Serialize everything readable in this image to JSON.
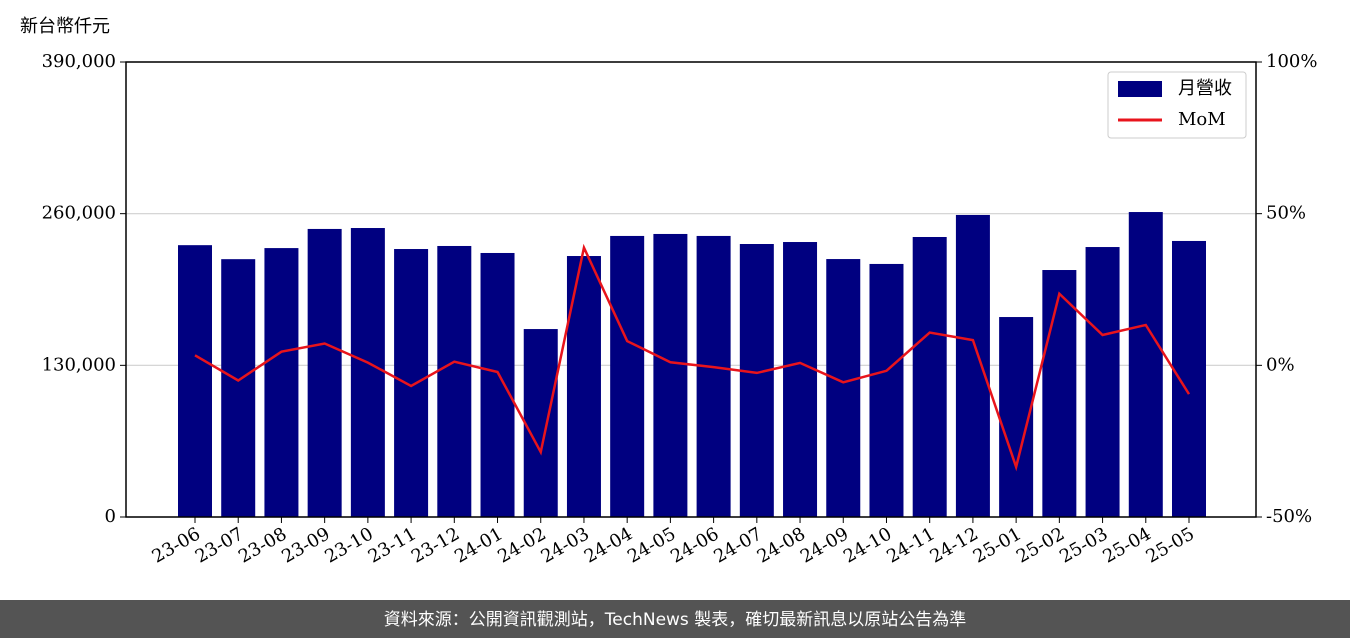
{
  "chart_data": {
    "type": "bar-line",
    "y_unit_label": "新台幣仟元",
    "source": "資料來源：公開資訊觀測站，TechNews 製表，確切最新訊息以原站公告為準",
    "categories": [
      "23-06",
      "23-07",
      "23-08",
      "23-09",
      "23-10",
      "23-11",
      "23-12",
      "24-01",
      "24-02",
      "24-03",
      "24-04",
      "24-05",
      "24-06",
      "24-07",
      "24-08",
      "24-09",
      "24-10",
      "24-11",
      "24-12",
      "25-01",
      "25-02",
      "25-03",
      "25-04",
      "25-05"
    ],
    "series": [
      {
        "name": "月營收",
        "type": "bar",
        "color": "#000080",
        "values": [
          233000,
          221000,
          230500,
          246900,
          247700,
          229700,
          232300,
          226300,
          161100,
          223700,
          240900,
          242600,
          240900,
          234000,
          235700,
          221100,
          216900,
          240000,
          258900,
          171400,
          211700,
          231400,
          261400,
          236600
        ]
      },
      {
        "name": "MoM",
        "type": "line",
        "axis": "y2",
        "color": "#e8141c",
        "values": [
          3.3,
          -5.0,
          4.5,
          7.2,
          0.9,
          -6.8,
          1.2,
          -2.2,
          -28.6,
          38.8,
          8.0,
          1.0,
          -0.6,
          -2.5,
          0.8,
          -5.6,
          -1.8,
          10.8,
          8.3,
          -33.5,
          23.6,
          10.0,
          13.3,
          -9.5
        ]
      }
    ],
    "ylim": [
      0,
      390000
    ],
    "yticks": [
      0,
      {
        "value": 130000,
        "label": "130,000"
      },
      {
        "value": 260000,
        "label": "260,000"
      },
      {
        "value": 390000,
        "label": "390,000"
      }
    ],
    "y2lim": [
      -50,
      100
    ],
    "y2ticks": [
      {
        "value": -50,
        "label": "-50%"
      },
      {
        "value": 0,
        "label": "0%"
      },
      {
        "value": 50,
        "label": "50%"
      },
      {
        "value": 100,
        "label": "100%"
      }
    ],
    "grid": true,
    "legend": "upper right"
  }
}
